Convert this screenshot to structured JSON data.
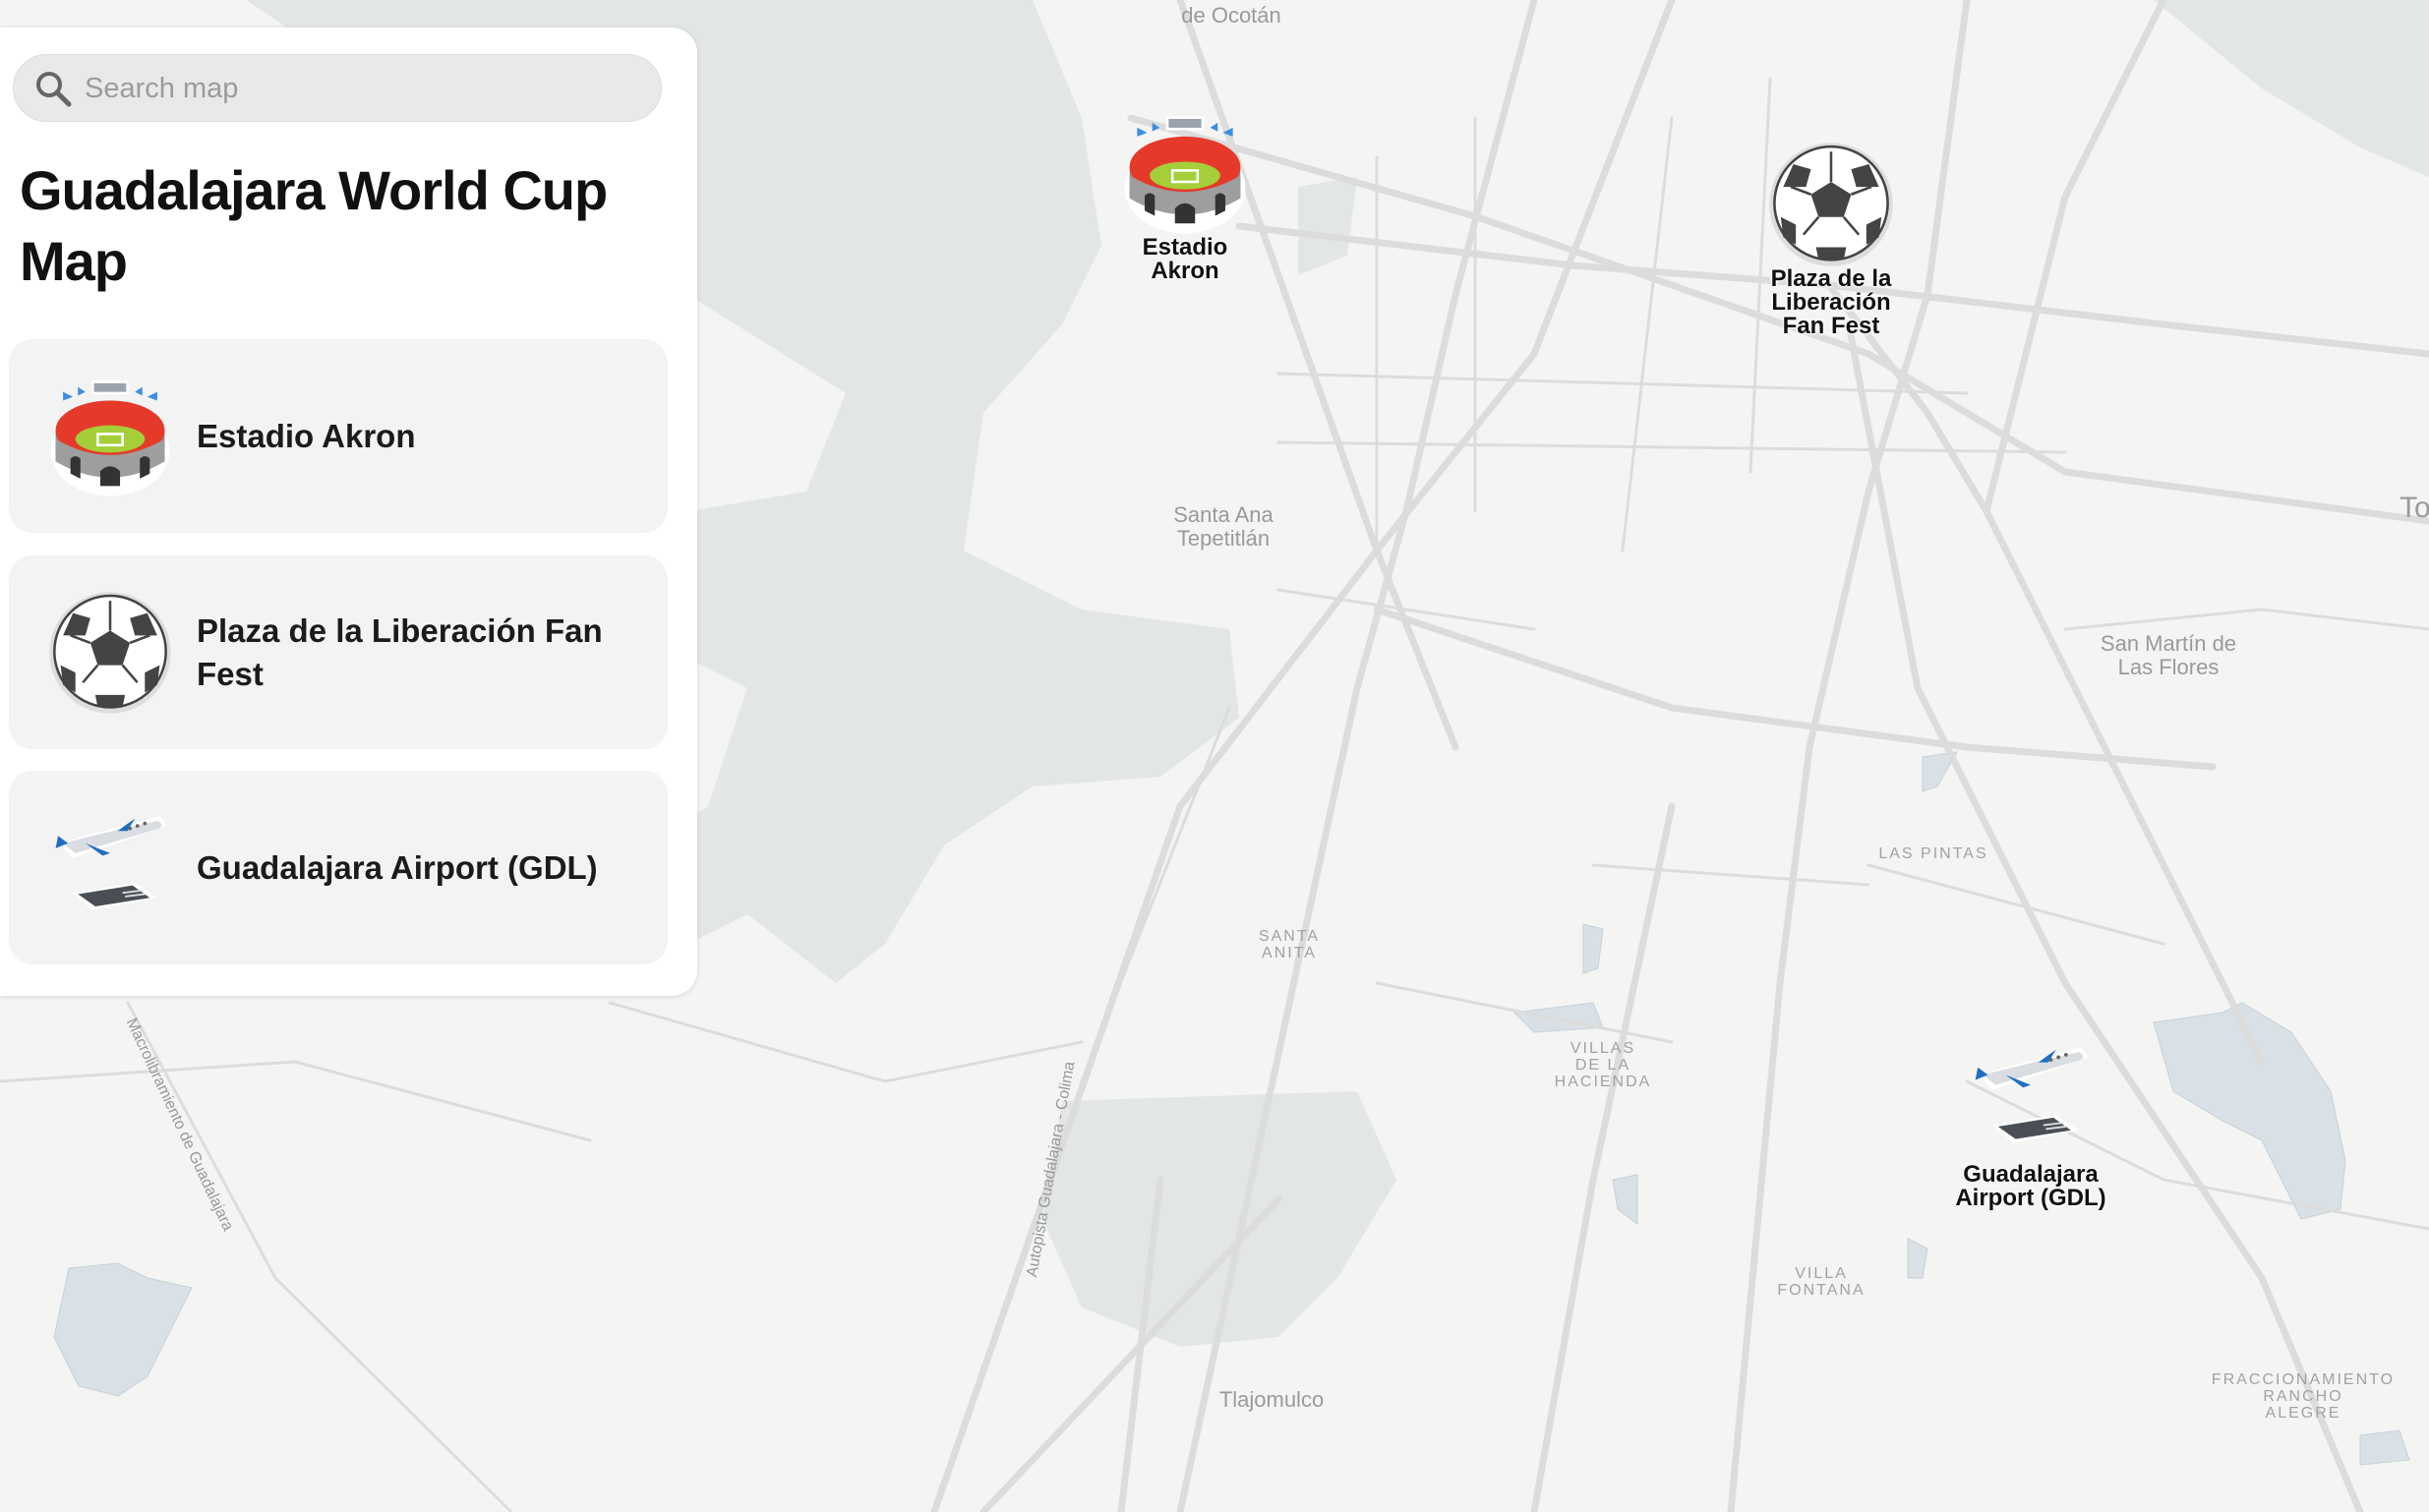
{
  "search": {
    "placeholder": "Search map",
    "value": "",
    "icon": "search-icon"
  },
  "sidebar": {
    "title": "Guadalajara World Cup Map",
    "items": [
      {
        "label": "Estadio Akron",
        "icon": "stadium-icon"
      },
      {
        "label": "Plaza de la Liberación Fan Fest",
        "icon": "soccer-ball-icon"
      },
      {
        "label": "Guadalajara Airport (GDL)",
        "icon": "airplane-icon"
      }
    ]
  },
  "map": {
    "markers": [
      {
        "label": "Estadio\nAkron",
        "icon": "stadium-icon"
      },
      {
        "label": "Plaza de la\nLiberación\nFan Fest",
        "icon": "soccer-ball-icon"
      },
      {
        "label": "Guadalajara\nAirport (GDL)",
        "icon": "airplane-icon"
      }
    ],
    "places": {
      "ocotan": "de Ocotán",
      "santa_ana": "Santa Ana\nTepetitlán",
      "tonala": "Tonal",
      "san_martin": "San Martín de\nLas Flores",
      "las_pintas": "LAS PINTAS",
      "santa_anita": "SANTA\nANITA",
      "villas_hacienda": "VILLAS\nDE LA\nHACIENDA",
      "villa_fontana": "VILLA\nFONTANA",
      "tlajomulco": "Tlajomulco",
      "rancho_alegre": "FRACCIONAMIENTO\nRANCHO\nALEGRE"
    },
    "roads": {
      "autopista": "Autopista Guadalajara - Colima",
      "macrolibramiento": "Macrolibramiento de Guadalajara"
    },
    "colors": {
      "land": "#f4f4f3",
      "park": "#e3e7e3",
      "water": "#d9e1e6",
      "road": "#dcdcdc"
    }
  }
}
